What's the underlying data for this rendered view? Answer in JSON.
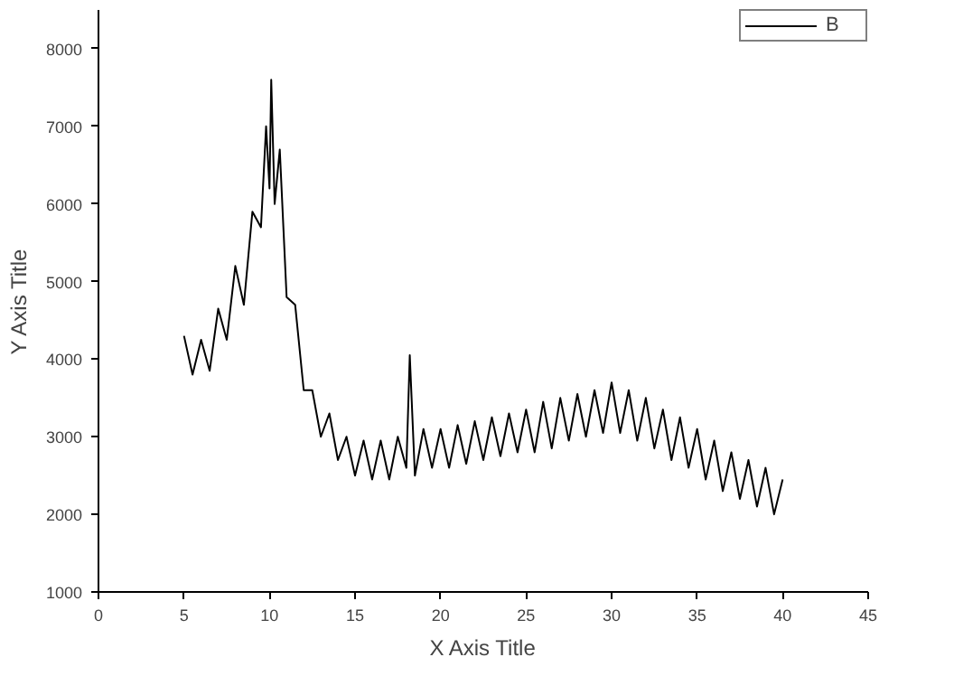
{
  "chart_data": {
    "type": "line",
    "xlabel": "X Axis Title",
    "ylabel": "Y Axis Title",
    "xlim": [
      0,
      45
    ],
    "ylim": [
      1000,
      8500
    ],
    "xticks": [
      0,
      5,
      10,
      15,
      20,
      25,
      30,
      35,
      40,
      45
    ],
    "yticks": [
      1000,
      2000,
      3000,
      4000,
      5000,
      6000,
      7000,
      8000
    ],
    "grid": false,
    "legend": "top right",
    "marker": "none",
    "line_style": "solid",
    "series": [
      {
        "name": "B",
        "color": "#000000",
        "x": [
          5.0,
          5.5,
          6.0,
          6.5,
          7.0,
          7.5,
          8.0,
          8.5,
          9.0,
          9.5,
          9.8,
          10.0,
          10.1,
          10.3,
          10.6,
          11.0,
          11.5,
          12.0,
          12.5,
          13.0,
          13.5,
          14.0,
          14.5,
          15.0,
          15.5,
          16.0,
          16.5,
          17.0,
          17.5,
          18.0,
          18.2,
          18.5,
          19.0,
          19.5,
          20.0,
          20.5,
          21.0,
          21.5,
          22.0,
          22.5,
          23.0,
          23.5,
          24.0,
          24.5,
          25.0,
          25.5,
          26.0,
          26.5,
          27.0,
          27.5,
          28.0,
          28.5,
          29.0,
          29.5,
          30.0,
          30.5,
          31.0,
          31.5,
          32.0,
          32.5,
          33.0,
          33.5,
          34.0,
          34.5,
          35.0,
          35.5,
          36.0,
          36.5,
          37.0,
          37.5,
          38.0,
          38.5,
          39.0,
          39.5,
          40.0
        ],
        "values": [
          4300,
          3800,
          4250,
          3850,
          4650,
          4250,
          5200,
          4700,
          5900,
          5700,
          7000,
          6200,
          7600,
          6000,
          6700,
          4800,
          4700,
          3600,
          3600,
          3000,
          3300,
          2700,
          3000,
          2500,
          2950,
          2450,
          2950,
          2450,
          3000,
          2600,
          4050,
          2500,
          3100,
          2600,
          3100,
          2600,
          3150,
          2650,
          3200,
          2700,
          3250,
          2750,
          3300,
          2800,
          3350,
          2800,
          3450,
          2850,
          3500,
          2950,
          3550,
          3000,
          3600,
          3050,
          3700,
          3050,
          3600,
          2950,
          3500,
          2850,
          3350,
          2700,
          3250,
          2600,
          3100,
          2450,
          2950,
          2300,
          2800,
          2200,
          2700,
          2100,
          2600,
          2000,
          2450
        ]
      }
    ]
  }
}
